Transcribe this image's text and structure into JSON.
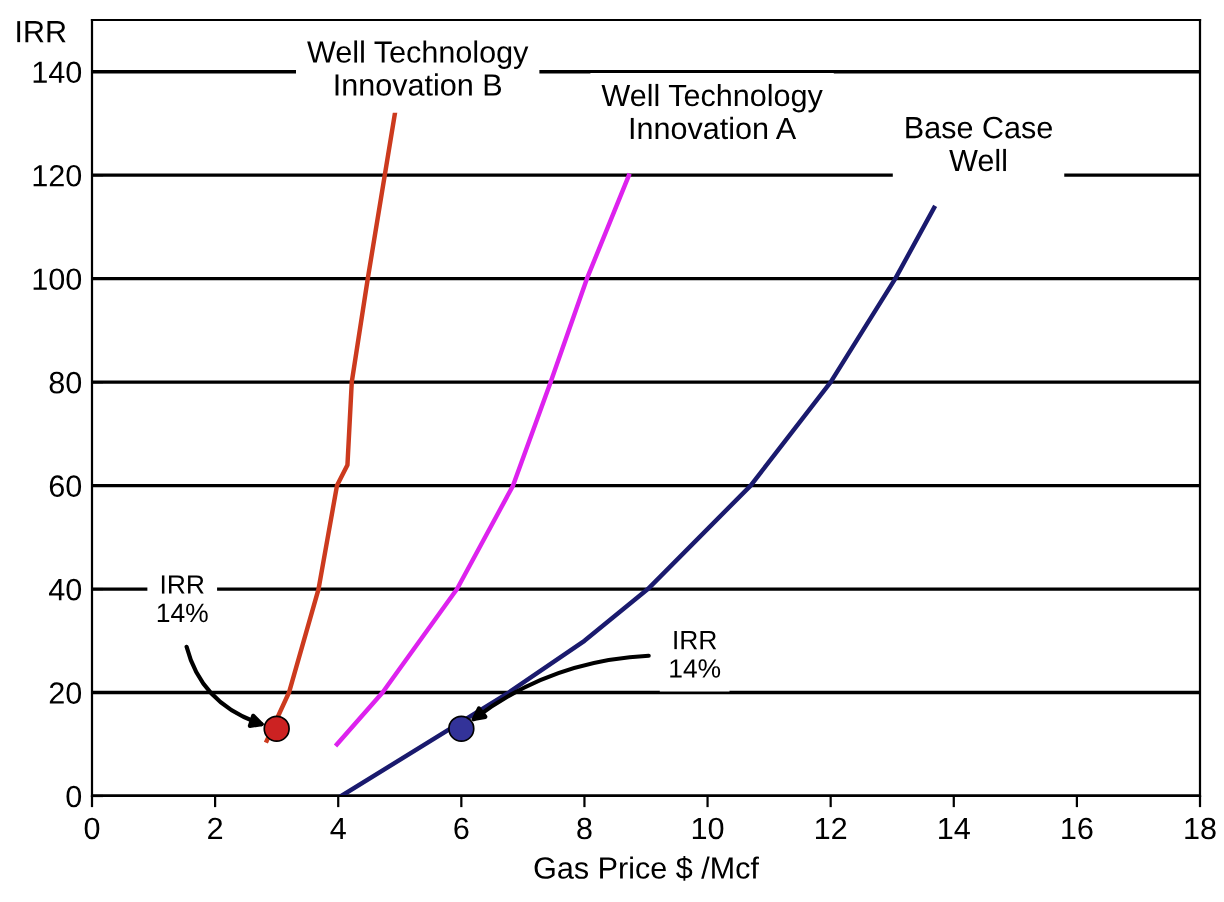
{
  "chart_data": {
    "type": "line",
    "xlabel": "Gas Price $ /Mcf",
    "ylabel": "IRR",
    "xlim": [
      0,
      18
    ],
    "ylim": [
      0,
      150
    ],
    "xticks": [
      0,
      2,
      4,
      6,
      8,
      10,
      12,
      14,
      16,
      18
    ],
    "yticks": [
      0,
      20,
      40,
      60,
      80,
      100,
      120,
      140
    ],
    "grid": "y",
    "legend": false,
    "marker": "none",
    "line_style": "solid",
    "series": [
      {
        "name": "Well Technology\nInnovation B",
        "color": "#cc3a1e",
        "x": [
          2.84,
          3.2,
          3.68,
          3.98,
          4.15,
          4.22,
          4.48,
          4.93
        ],
        "values": [
          10.7,
          20,
          40,
          60,
          64,
          80,
          100,
          132.6
        ]
      },
      {
        "name": "Well Technology\nInnovation A",
        "color": "#dd22ee",
        "x": [
          3.98,
          4.72,
          5.93,
          6.84,
          7.45,
          8.04,
          8.72
        ],
        "values": [
          10,
          20,
          40,
          60,
          80,
          100,
          119.9
        ]
      },
      {
        "name": "Base Case\nWell",
        "color": "#1a1a6e",
        "x": [
          4.05,
          6.77,
          8.0,
          9.03,
          10.7,
          12.0,
          13.05,
          13.68
        ],
        "values": [
          0,
          20,
          30,
          40,
          60,
          80,
          100,
          113.7
        ]
      },
      {
        "type": "scatter",
        "marker": "circle",
        "colors": [
          "#cc2222",
          "#333399"
        ],
        "x": [
          3,
          6
        ],
        "values": [
          13,
          13
        ]
      }
    ],
    "annotations": [
      {
        "text": "IRR\n14%",
        "x": 3,
        "y": 13
      },
      {
        "text": "IRR\n14%",
        "x": 6,
        "y": 13
      }
    ]
  }
}
